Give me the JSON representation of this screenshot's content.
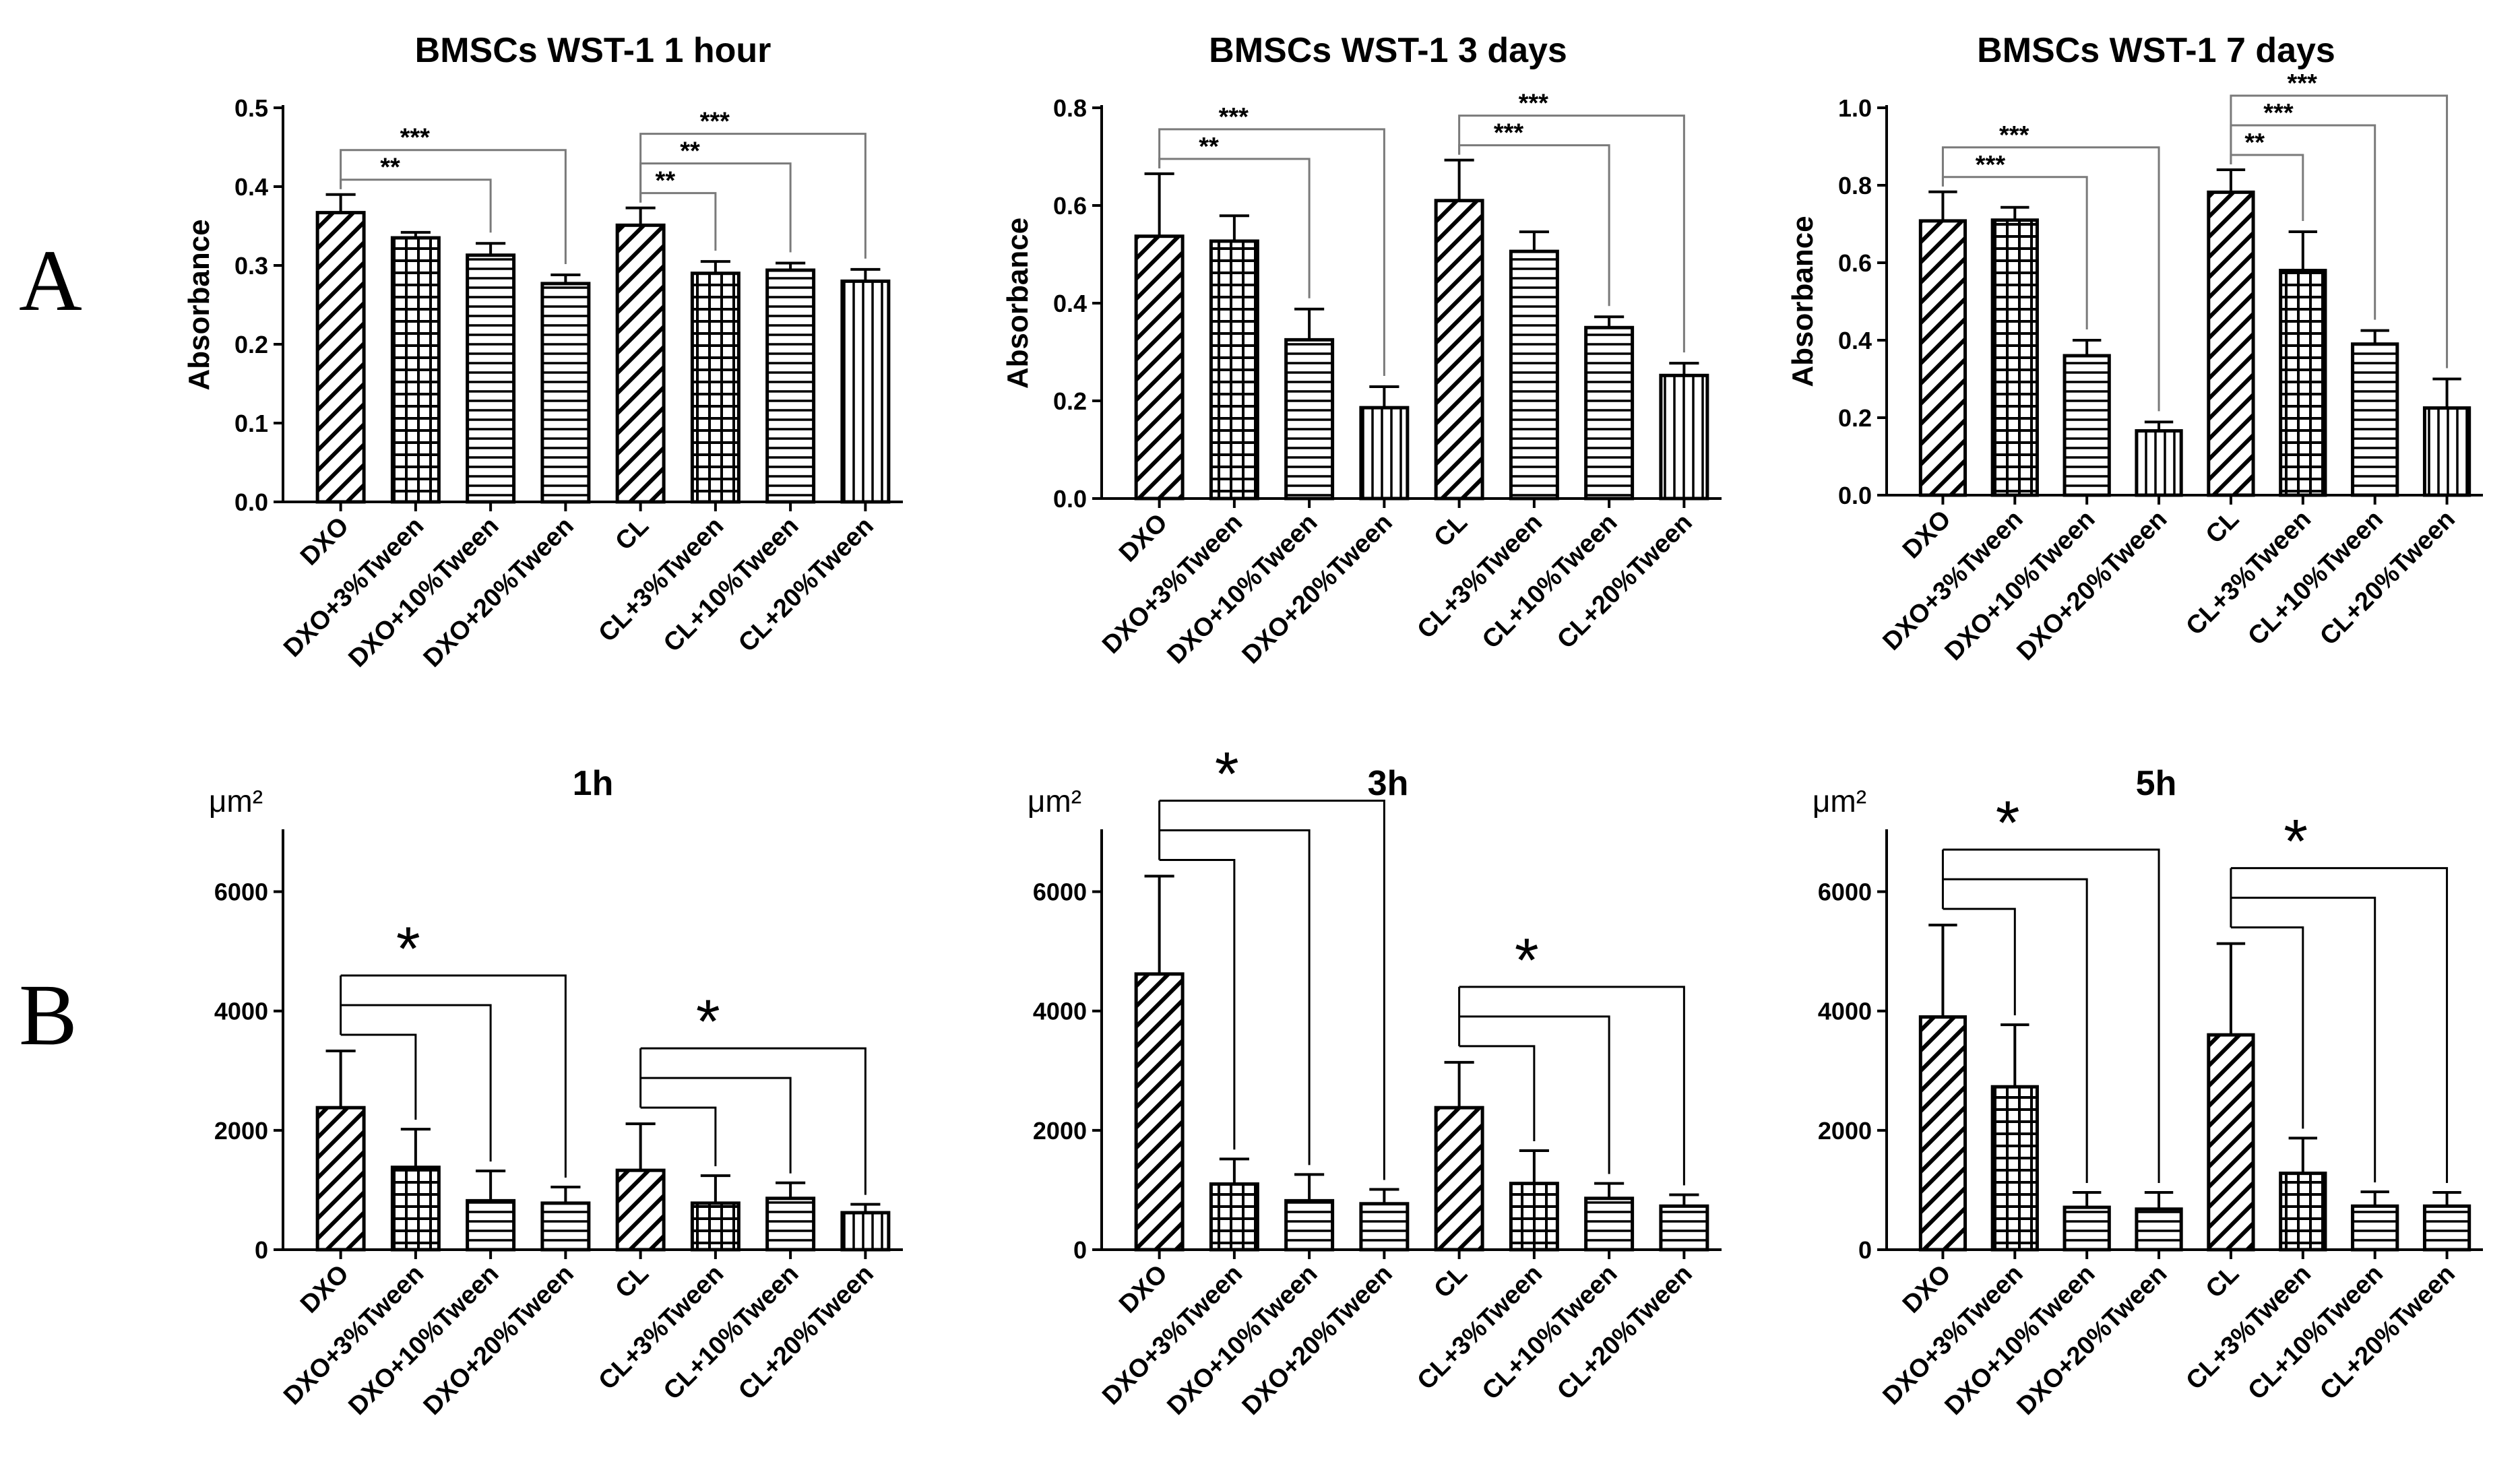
{
  "panel_labels": [
    "A",
    "B"
  ],
  "chart_data": [
    {
      "type": "bar",
      "title": "BMSCs WST-1 1 hour",
      "xlabel": "",
      "ylabel": "Absorbance",
      "unit_label": "",
      "ylim": [
        0,
        0.5
      ],
      "yticks": [
        "0.0",
        "0.1",
        "0.2",
        "0.3",
        "0.4",
        "0.5"
      ],
      "categories": [
        "DXO",
        "DXO+3%Tween",
        "DXO+10%Tween",
        "DXO+20%Tween",
        "CL",
        "CL+3%Tween",
        "CL+10%Tween",
        "CL+20%Tween"
      ],
      "patterns": [
        "diag",
        "grid",
        "hlines",
        "hlines",
        "diag",
        "grid",
        "hlines",
        "vlines"
      ],
      "values": [
        0.367,
        0.335,
        0.313,
        0.277,
        0.351,
        0.29,
        0.294,
        0.28
      ],
      "errors": [
        0.023,
        0.007,
        0.015,
        0.011,
        0.022,
        0.015,
        0.009,
        0.015
      ],
      "significance": [
        {
          "from": 0,
          "to": 2,
          "label": "**"
        },
        {
          "from": 0,
          "to": 3,
          "label": "***"
        },
        {
          "from": 4,
          "to": 5,
          "label": "**"
        },
        {
          "from": 4,
          "to": 6,
          "label": "**"
        },
        {
          "from": 4,
          "to": 7,
          "label": "***"
        }
      ]
    },
    {
      "type": "bar",
      "title": "BMSCs WST-1 3 days",
      "xlabel": "",
      "ylabel": "Absorbance",
      "unit_label": "",
      "ylim": [
        0,
        0.8
      ],
      "yticks": [
        "0.0",
        "0.2",
        "0.4",
        "0.6",
        "0.8"
      ],
      "categories": [
        "DXO",
        "DXO+3%Tween",
        "DXO+10%Tween",
        "DXO+20%Tween",
        "CL",
        "CL+3%Tween",
        "CL+10%Tween",
        "CL+20%Tween"
      ],
      "patterns": [
        "diag",
        "grid",
        "hlines",
        "vlines",
        "diag",
        "hlines",
        "hlines",
        "vlines"
      ],
      "values": [
        0.537,
        0.527,
        0.325,
        0.186,
        0.61,
        0.506,
        0.35,
        0.252
      ],
      "errors": [
        0.128,
        0.052,
        0.063,
        0.043,
        0.083,
        0.04,
        0.022,
        0.025
      ],
      "significance": [
        {
          "from": 0,
          "to": 2,
          "label": "**"
        },
        {
          "from": 0,
          "to": 3,
          "label": "***"
        },
        {
          "from": 4,
          "to": 6,
          "label": "***"
        },
        {
          "from": 4,
          "to": 7,
          "label": "***"
        }
      ]
    },
    {
      "type": "bar",
      "title": "BMSCs WST-1 7 days",
      "xlabel": "",
      "ylabel": "Absorbance",
      "unit_label": "",
      "ylim": [
        0,
        1.0
      ],
      "yticks": [
        "0.0",
        "0.2",
        "0.4",
        "0.6",
        "0.8",
        "1.0"
      ],
      "categories": [
        "DXO",
        "DXO+3%Tween",
        "DXO+10%Tween",
        "DXO+20%Tween",
        "CL",
        "CL+3%Tween",
        "CL+10%Tween",
        "CL+20%Tween"
      ],
      "patterns": [
        "diag",
        "grid",
        "hlines",
        "vlines",
        "diag",
        "grid",
        "hlines",
        "vlines"
      ],
      "values": [
        0.708,
        0.71,
        0.36,
        0.166,
        0.782,
        0.58,
        0.39,
        0.225
      ],
      "errors": [
        0.075,
        0.033,
        0.04,
        0.023,
        0.058,
        0.1,
        0.035,
        0.075
      ],
      "significance": [
        {
          "from": 0,
          "to": 2,
          "label": "***"
        },
        {
          "from": 0,
          "to": 3,
          "label": "***"
        },
        {
          "from": 4,
          "to": 5,
          "label": "**"
        },
        {
          "from": 4,
          "to": 6,
          "label": "***"
        },
        {
          "from": 4,
          "to": 7,
          "label": "***"
        }
      ]
    },
    {
      "type": "bar",
      "title": "1h",
      "xlabel": "",
      "ylabel": "",
      "unit_label": "μm²",
      "ylim": [
        0,
        7000
      ],
      "yticks": [
        "0",
        "2000",
        "4000",
        "6000"
      ],
      "categories": [
        "DXO",
        "DXO+3%Tween",
        "DXO+10%Tween",
        "DXO+20%Tween",
        "CL",
        "CL+3%Tween",
        "CL+10%Tween",
        "CL+20%Tween"
      ],
      "patterns": [
        "diag",
        "grid",
        "hlines",
        "hlines",
        "diag",
        "grid",
        "hlines",
        "vlines"
      ],
      "values": [
        2380,
        1380,
        820,
        780,
        1330,
        780,
        860,
        620
      ],
      "errors": [
        950,
        640,
        500,
        270,
        780,
        460,
        260,
        140
      ],
      "significance_groups": [
        {
          "from": 0,
          "to": [
            1,
            2,
            3
          ],
          "label": "*"
        },
        {
          "from": 4,
          "to": [
            5,
            6,
            7
          ],
          "label": "*"
        }
      ]
    },
    {
      "type": "bar",
      "title": "3h",
      "xlabel": "",
      "ylabel": "",
      "unit_label": "μm²",
      "ylim": [
        0,
        7000
      ],
      "yticks": [
        "0",
        "2000",
        "4000",
        "6000"
      ],
      "categories": [
        "DXO",
        "DXO+3%Tween",
        "DXO+10%Tween",
        "DXO+20%Tween",
        "CL",
        "CL+3%Tween",
        "CL+10%Tween",
        "CL+20%Tween"
      ],
      "patterns": [
        "diag",
        "grid",
        "hlines",
        "hlines",
        "diag",
        "grid",
        "hlines",
        "hlines"
      ],
      "values": [
        4620,
        1100,
        820,
        770,
        2380,
        1110,
        860,
        730
      ],
      "errors": [
        1640,
        420,
        440,
        240,
        760,
        550,
        250,
        190
      ],
      "significance_groups": [
        {
          "from": 0,
          "to": [
            1,
            2,
            3
          ],
          "label": "*"
        },
        {
          "from": 4,
          "to": [
            5,
            6,
            7
          ],
          "label": "*"
        }
      ]
    },
    {
      "type": "bar",
      "title": "5h",
      "xlabel": "",
      "ylabel": "",
      "unit_label": "μm²",
      "ylim": [
        0,
        7000
      ],
      "yticks": [
        "0",
        "2000",
        "4000",
        "6000"
      ],
      "categories": [
        "DXO",
        "DXO+3%Tween",
        "DXO+10%Tween",
        "DXO+20%Tween",
        "CL",
        "CL+3%Tween",
        "CL+10%Tween",
        "CL+20%Tween"
      ],
      "patterns": [
        "diag",
        "grid",
        "hlines",
        "hlines",
        "diag",
        "grid",
        "hlines",
        "hlines"
      ],
      "values": [
        3900,
        2730,
        710,
        680,
        3600,
        1280,
        730,
        730
      ],
      "errors": [
        1540,
        1040,
        250,
        280,
        1530,
        590,
        240,
        230
      ],
      "significance_groups": [
        {
          "from": 0,
          "to": [
            1,
            2,
            3
          ],
          "label": "*"
        },
        {
          "from": 4,
          "to": [
            5,
            6,
            7
          ],
          "label": "*"
        }
      ]
    }
  ]
}
